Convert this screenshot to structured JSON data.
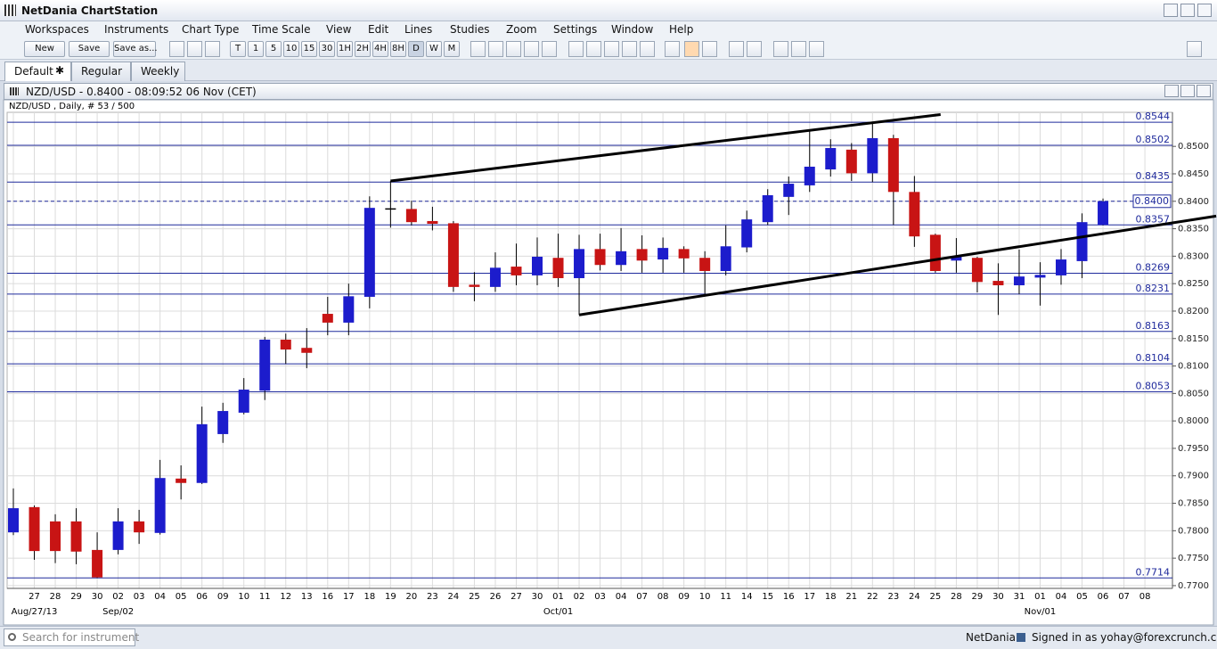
{
  "window": {
    "title": "NetDania ChartStation"
  },
  "menu": [
    "Workspaces",
    "Instruments",
    "Chart Type",
    "Time Scale",
    "View",
    "Edit",
    "Lines",
    "Studies",
    "Zoom",
    "Settings",
    "Window",
    "Help"
  ],
  "toolbar": {
    "buttons": [
      "New",
      "Save",
      "Save as..."
    ],
    "timeframes": [
      "T",
      "1",
      "5",
      "10",
      "15",
      "30",
      "1H",
      "2H",
      "4H",
      "8H",
      "D",
      "W",
      "M"
    ]
  },
  "tabs": [
    "Default",
    "Regular",
    "Weekly"
  ],
  "chart_window": {
    "title": "NZD/USD - 0.8400 - 08:09:52  06 Nov (CET)",
    "info": "NZD/USD , Daily, # 53 / 500"
  },
  "chart_data": {
    "type": "candlestick",
    "categories": [
      null,
      "27",
      "28",
      "29",
      "30",
      "02",
      "03",
      "04",
      "05",
      "06",
      "09",
      "10",
      "11",
      "12",
      "13",
      "16",
      "17",
      "18",
      "19",
      "20",
      "23",
      "24",
      "25",
      "26",
      "27",
      "30",
      "01",
      "02",
      "03",
      "04",
      "07",
      "08",
      "09",
      "10",
      "11",
      "14",
      "15",
      "16",
      "17",
      "18",
      "21",
      "22",
      "23",
      "24",
      "25",
      "28",
      "29",
      "30",
      "31",
      "01",
      "04",
      "05",
      "06",
      "07",
      "08"
    ],
    "period_labels": [
      null,
      "Aug/27/13",
      null,
      null,
      null,
      "Sep/02",
      null,
      null,
      null,
      null,
      null,
      null,
      null,
      null,
      null,
      null,
      null,
      null,
      null,
      null,
      null,
      null,
      null,
      null,
      null,
      null,
      "Oct/01",
      null,
      null,
      null,
      null,
      null,
      null,
      null,
      null,
      null,
      null,
      null,
      null,
      null,
      null,
      null,
      null,
      null,
      null,
      null,
      null,
      null,
      null,
      "Nov/01",
      null,
      null,
      null,
      null,
      null
    ],
    "open": [
      0.7797,
      0.7843,
      0.7817,
      0.7817,
      0.7765,
      0.7765,
      0.7817,
      0.7796,
      0.7895,
      0.7887,
      0.7976,
      0.8015,
      0.8055,
      0.8148,
      0.8133,
      0.8195,
      0.8179,
      0.8226,
      0.8386,
      0.8386,
      0.8364,
      0.836,
      0.8248,
      0.8244,
      0.8281,
      0.8265,
      0.8297,
      0.826,
      0.8313,
      0.8284,
      0.8313,
      0.8294,
      0.8313,
      0.8297,
      0.8273,
      0.8316,
      0.8362,
      0.8408,
      0.8429,
      0.8458,
      0.8494,
      0.8451,
      0.8515,
      0.8417,
      0.8339,
      0.8292,
      0.8297,
      0.8255,
      0.8247,
      0.8261,
      0.8265,
      0.8291,
      0.8357,
      null,
      null
    ],
    "high": [
      0.7877,
      0.7846,
      0.783,
      0.7841,
      0.7797,
      0.7841,
      0.7838,
      0.7929,
      0.7919,
      0.8026,
      0.8033,
      0.8078,
      0.8153,
      0.8159,
      0.8169,
      0.8226,
      0.825,
      0.8409,
      0.8437,
      0.8401,
      0.839,
      0.8364,
      0.8271,
      0.8307,
      0.8323,
      0.8334,
      0.8341,
      0.8339,
      0.8341,
      0.8351,
      0.8338,
      0.8334,
      0.8318,
      0.8309,
      0.8356,
      0.8383,
      0.8422,
      0.8445,
      0.8529,
      0.8513,
      0.8506,
      0.8544,
      0.8521,
      0.8446,
      0.8341,
      0.8333,
      0.8299,
      0.8287,
      0.8312,
      0.8289,
      0.8313,
      0.8378,
      0.8405,
      null,
      null
    ],
    "low": [
      0.7792,
      0.7747,
      0.7741,
      0.7739,
      0.7714,
      0.7757,
      0.7776,
      0.7793,
      0.7857,
      0.7885,
      0.796,
      0.8012,
      0.8038,
      0.8104,
      0.8096,
      0.8156,
      0.8156,
      0.8205,
      0.8352,
      0.8356,
      0.8347,
      0.8235,
      0.8218,
      0.8235,
      0.8247,
      0.8247,
      0.8244,
      0.8193,
      0.8274,
      0.8273,
      0.827,
      0.827,
      0.827,
      0.8231,
      0.8265,
      0.8307,
      0.8357,
      0.8375,
      0.8417,
      0.8445,
      0.8437,
      0.8435,
      0.8357,
      0.8317,
      0.827,
      0.827,
      0.8234,
      0.8193,
      0.8231,
      0.821,
      0.8248,
      0.826,
      0.8356,
      null,
      null
    ],
    "close": [
      0.7841,
      0.7763,
      0.7763,
      0.7762,
      0.7715,
      0.7817,
      0.7797,
      0.7896,
      0.7887,
      0.7994,
      0.8018,
      0.8057,
      0.8148,
      0.813,
      0.8124,
      0.8179,
      0.8227,
      0.8388,
      0.8386,
      0.8362,
      0.8359,
      0.8244,
      0.8244,
      0.8279,
      0.8265,
      0.8299,
      0.826,
      0.8313,
      0.8284,
      0.8309,
      0.8292,
      0.8315,
      0.8296,
      0.8273,
      0.8318,
      0.8367,
      0.8411,
      0.8432,
      0.8463,
      0.8497,
      0.8451,
      0.8515,
      0.8417,
      0.8336,
      0.8273,
      0.83,
      0.8253,
      0.8247,
      0.8263,
      0.8266,
      0.8294,
      0.8362,
      0.84,
      null,
      null
    ],
    "up_color": "#1c1ccc",
    "down_color": "#c81414",
    "neutral_color": "#000000",
    "ylim": [
      0.7695,
      0.8562
    ],
    "yticks": [
      {
        "value": 0.77,
        "label": "0.7700"
      },
      {
        "value": 0.775,
        "label": "0.7750"
      },
      {
        "value": 0.78,
        "label": "0.7800"
      },
      {
        "value": 0.785,
        "label": "0.7850"
      },
      {
        "value": 0.79,
        "label": "0.7900"
      },
      {
        "value": 0.795,
        "label": "0.7950"
      },
      {
        "value": 0.8,
        "label": "0.8000"
      },
      {
        "value": 0.805,
        "label": "0.8050"
      },
      {
        "value": 0.81,
        "label": "0.8100"
      },
      {
        "value": 0.815,
        "label": "0.8150"
      },
      {
        "value": 0.82,
        "label": "0.8200"
      },
      {
        "value": 0.825,
        "label": "0.8250"
      },
      {
        "value": 0.83,
        "label": "0.8300"
      },
      {
        "value": 0.835,
        "label": "0.8350"
      },
      {
        "value": 0.84,
        "label": "0.8400"
      },
      {
        "value": 0.845,
        "label": "0.8450"
      },
      {
        "value": 0.85,
        "label": "0.8500"
      }
    ],
    "grid": true,
    "levels": [
      0.8544,
      0.8502,
      0.8435,
      0.8357,
      0.8269,
      0.8231,
      0.8163,
      0.8104,
      0.8053,
      0.7714
    ],
    "level_color": "#1f2a9c",
    "current_price": {
      "value": 0.84,
      "label": "0.8400"
    },
    "trend_lines": [
      {
        "x": [
          18,
          44.25
        ],
        "y": [
          0.8437,
          0.8558
        ]
      },
      {
        "x": [
          27,
          57.4
        ],
        "y": [
          0.8193,
          0.8373
        ]
      }
    ]
  },
  "status_bar": {
    "search_placeholder": "Search for instrument",
    "brand": "NetDania",
    "signed_in": "Signed in as yohay@forexcrunch.com"
  }
}
